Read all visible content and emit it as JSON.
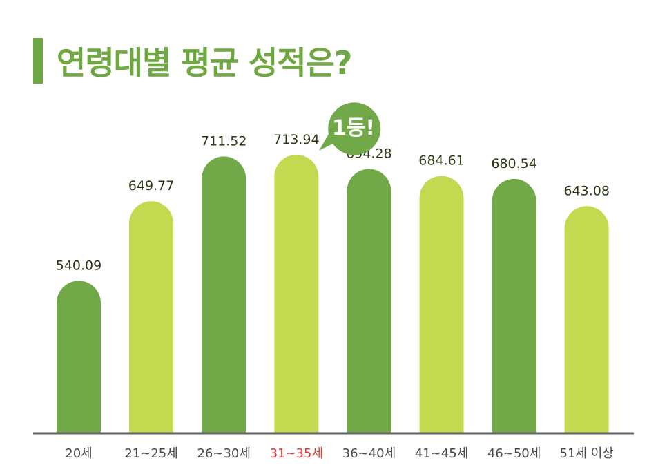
{
  "title": "연령대별 평균 성적은?",
  "badge": "1등!",
  "colors": {
    "title": "#6fa843",
    "dark_bar": "#71a948",
    "light_bar": "#c3d94f",
    "highlight_label": "#e23a3a",
    "axis": "#666666",
    "badge": "#71a948"
  },
  "chart_data": {
    "type": "bar",
    "categories": [
      "20세",
      "21~25세",
      "26~30세",
      "31~35세",
      "36~40세",
      "41~45세",
      "46~50세",
      "51세 이상"
    ],
    "values": [
      540.09,
      649.77,
      711.52,
      713.94,
      694.28,
      684.61,
      680.54,
      643.08
    ],
    "value_labels": [
      "540.09",
      "649.77",
      "711.52",
      "713.94",
      "694.28",
      "684.61",
      "680.54",
      "643.08"
    ],
    "highlight_index": 3,
    "ylim": [
      330,
      730
    ],
    "grid": false,
    "legend": "none"
  }
}
